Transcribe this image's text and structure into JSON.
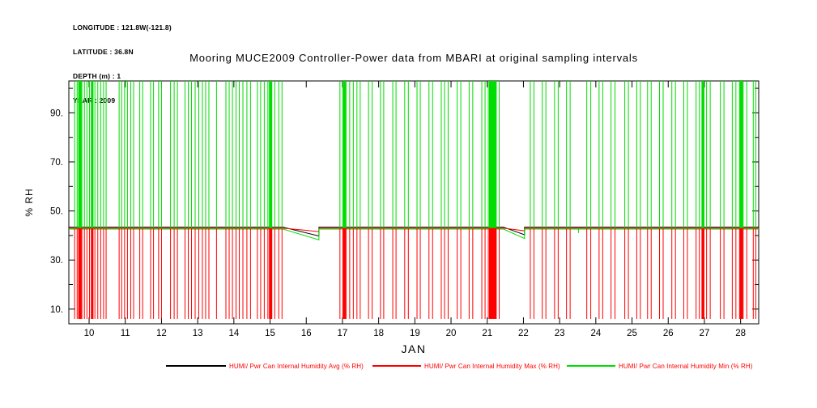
{
  "meta": {
    "lines": [
      "LONGITUDE : 121.8W(-121.8)",
      "LATITUDE : 36.8N",
      "DEPTH (m) : 1",
      "YEAR : 2009"
    ]
  },
  "title": "Mooring MUCE2009 Controller-Power data from MBARI at original sampling intervals",
  "legend": {
    "items": [
      {
        "label": "HUMI/ Pwr Can Internal Humidity Avg (% RH)",
        "line_color": "#000000",
        "label_color": "#ff0000"
      },
      {
        "label": "HUMI/ Pwr Can Internal Humidity Max (% RH)",
        "line_color": "#ff0000",
        "label_color": "#ff0000"
      },
      {
        "label": "HUMI/ Pwr Can Internal Humidity Min (% RH)",
        "line_color": "#00dd00",
        "label_color": "#ff0000"
      }
    ]
  },
  "chart_data": {
    "type": "line",
    "title": "Mooring MUCE2009 Controller-Power data from MBARI at original sampling intervals",
    "xlabel": "JAN",
    "ylabel": "% RH",
    "grid": false,
    "legend_position": "bottom",
    "x_axis": {
      "min": 9.44,
      "max": 28.5,
      "tick_days": [
        10,
        11,
        12,
        13,
        14,
        15,
        16,
        17,
        18,
        19,
        20,
        21,
        22,
        23,
        24,
        25,
        26,
        27,
        28
      ],
      "tick_labels": [
        "10",
        "11",
        "12",
        "13",
        "14",
        "15",
        "16",
        "17",
        "18",
        "19",
        "20",
        "21",
        "22",
        "23",
        "24",
        "25",
        "26",
        "27",
        "28"
      ],
      "label": "JAN",
      "year": "2009"
    },
    "y_axis": {
      "min": 4,
      "max": 103,
      "tick_values": [
        10,
        30,
        50,
        70,
        90
      ],
      "tick_labels": [
        "10.",
        "30.",
        "50.",
        "70.",
        "90."
      ],
      "minor_tick_values": [
        20,
        40,
        60,
        80,
        100
      ],
      "label": "% RH"
    },
    "baseline_value": 43,
    "series": [
      {
        "name": "HUMI/ Pwr Can Internal Humidity Avg (% RH)",
        "color": "#000000",
        "baseline_value": 43
      },
      {
        "name": "HUMI/ Pwr Can Internal Humidity Max (% RH)",
        "color": "#ff0000",
        "baseline_value": 43,
        "spike_value": 6
      },
      {
        "name": "HUMI/ Pwr Can Internal Humidity Min (% RH)",
        "color": "#00dd00",
        "baseline_value": 43,
        "spike_value": 103
      }
    ],
    "spike_days": [
      9.6,
      9.67,
      9.74,
      9.8,
      9.87,
      9.94,
      10.01,
      10.08,
      10.16,
      10.24,
      10.32,
      10.4,
      10.47,
      10.83,
      10.9,
      10.98,
      11.06,
      11.15,
      11.23,
      11.4,
      11.48,
      11.7,
      11.78,
      11.92,
      12.0,
      12.25,
      12.35,
      12.44,
      12.65,
      12.74,
      12.83,
      12.93,
      13.03,
      13.13,
      13.22,
      13.31,
      13.52,
      13.78,
      13.87,
      13.96,
      14.06,
      14.15,
      14.25,
      14.36,
      14.46,
      14.65,
      14.74,
      14.84,
      14.94,
      15.03,
      15.13,
      15.24,
      15.33,
      16.93,
      17.01,
      17.1,
      17.2,
      17.3,
      17.4,
      17.49,
      17.72,
      17.82,
      18.05,
      18.14,
      18.39,
      18.48,
      18.72,
      18.82,
      19.06,
      19.15,
      19.39,
      19.49,
      19.73,
      19.82,
      19.92,
      20.17,
      20.27,
      20.5,
      20.6,
      20.85,
      20.94,
      21.03,
      21.33,
      22.19,
      22.29,
      22.52,
      22.62,
      22.86,
      22.96,
      23.19,
      23.29,
      23.75,
      23.86,
      24.09,
      24.19,
      24.42,
      24.53,
      24.8,
      24.9,
      25.13,
      25.23,
      25.43,
      25.53,
      25.76,
      25.86,
      26.1,
      26.2,
      26.43,
      26.53,
      26.77,
      26.86,
      26.96,
      27.06,
      27.16,
      27.44,
      27.54,
      27.77,
      27.87,
      27.97,
      28.07,
      28.17,
      28.35,
      28.42
    ],
    "spike_bands": [
      [
        9.7,
        9.79
      ],
      [
        10.05,
        10.12
      ],
      [
        14.97,
        15.06
      ],
      [
        17.02,
        17.09
      ],
      [
        21.05,
        21.26
      ],
      [
        26.92,
        27.0
      ],
      [
        27.98,
        28.06
      ]
    ],
    "dips": [
      {
        "x_start": 15.36,
        "x_end": 16.35,
        "avg_end": 39.8,
        "max_end": 41.6,
        "min_end": 38.2
      },
      {
        "x_start": 21.45,
        "x_end": 22.03,
        "avg_end": 40.3,
        "max_end": 41.9,
        "min_end": 38.8
      }
    ],
    "notches": [
      {
        "x": 23.52,
        "min_value": 41.0
      }
    ]
  }
}
